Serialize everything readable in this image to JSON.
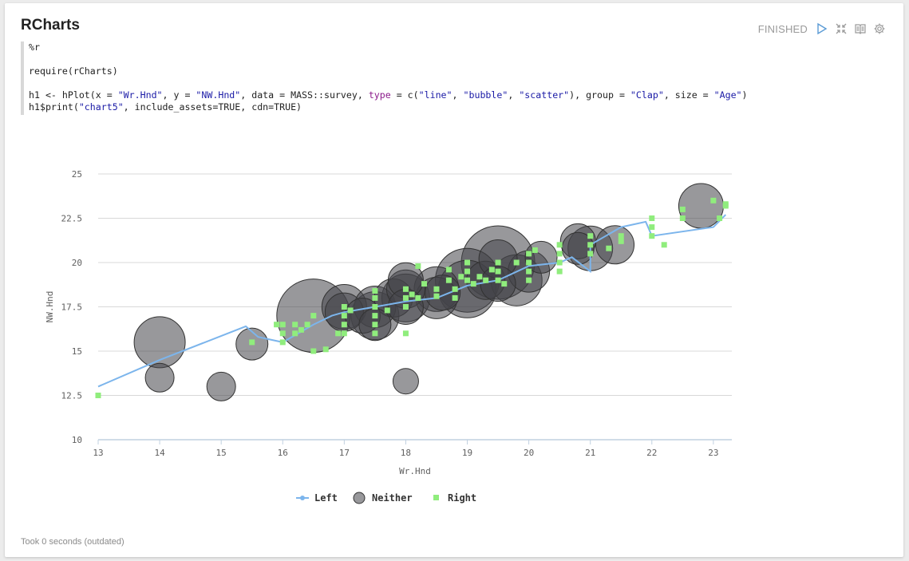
{
  "paragraph": {
    "title": "RCharts",
    "status": "FINISHED",
    "footer": "Took 0 seconds (outdated)"
  },
  "code": {
    "line1": "%r",
    "line2": "",
    "line3": "require(rCharts)",
    "line4": "",
    "line5_parts": [
      "h1 <- hPlot(x = ",
      "\"Wr.Hnd\"",
      ", y = ",
      "\"NW.Hnd\"",
      ", data = MASS::survey, ",
      "type",
      " = c(",
      "\"line\"",
      ", ",
      "\"bubble\"",
      ", ",
      "\"scatter\"",
      "), group = ",
      "\"Clap\"",
      ", size = ",
      "\"Age\"",
      ")"
    ],
    "line6_parts": [
      "h1$print(",
      "\"chart5\"",
      ", include_assets=TRUE, cdn=TRUE)"
    ]
  },
  "chart_data": {
    "type": "scatter",
    "xlabel": "Wr.Hnd",
    "ylabel": "NW.Hnd",
    "xlim": [
      13,
      23.3
    ],
    "ylim": [
      10,
      25
    ],
    "x_ticks": [
      "13",
      "14",
      "15",
      "16",
      "17",
      "18",
      "19",
      "20",
      "21",
      "22",
      "23"
    ],
    "y_ticks": [
      "10",
      "12.5",
      "15",
      "17.5",
      "20",
      "22.5",
      "25"
    ],
    "grid": true,
    "legend_position": "bottom",
    "colors": {
      "Left": "#7cb5ec",
      "Neither": "#434348",
      "Right": "#90ed7d",
      "grid": "#d8d8d8",
      "axis": "#c0d0e0"
    },
    "series": [
      {
        "name": "Left",
        "kind": "line",
        "points": [
          [
            13,
            13
          ],
          [
            14,
            14.5
          ],
          [
            15.4,
            16.4
          ],
          [
            15.6,
            15.8
          ],
          [
            16,
            15.5
          ],
          [
            16.5,
            16.5
          ],
          [
            16.8,
            17
          ],
          [
            17,
            17.2
          ],
          [
            17.5,
            17.5
          ],
          [
            18,
            17.8
          ],
          [
            18.5,
            18
          ],
          [
            19,
            18.7
          ],
          [
            19.5,
            19
          ],
          [
            20,
            19.8
          ],
          [
            20.5,
            20
          ],
          [
            20.7,
            20.3
          ],
          [
            21,
            19.5
          ],
          [
            21,
            21
          ],
          [
            21.5,
            22
          ],
          [
            21.9,
            22.3
          ],
          [
            22,
            21.5
          ],
          [
            23,
            22
          ],
          [
            23.2,
            22.7
          ]
        ]
      },
      {
        "name": "Neither",
        "kind": "bubble",
        "points": [
          [
            14,
            15.5,
            32
          ],
          [
            14,
            13.5,
            18
          ],
          [
            15,
            13,
            18
          ],
          [
            15.5,
            15.4,
            20
          ],
          [
            16.5,
            17,
            46
          ],
          [
            17,
            17.5,
            28
          ],
          [
            17,
            17.2,
            24
          ],
          [
            17.3,
            17,
            22
          ],
          [
            17.5,
            17.5,
            26
          ],
          [
            17.5,
            17,
            30
          ],
          [
            17.5,
            16.5,
            20
          ],
          [
            17.8,
            18,
            24
          ],
          [
            18,
            18,
            30
          ],
          [
            18,
            18.5,
            24
          ],
          [
            18,
            19,
            22
          ],
          [
            18,
            17.5,
            22
          ],
          [
            18,
            13.3,
            16
          ],
          [
            18.5,
            18.5,
            28
          ],
          [
            18.5,
            18,
            26
          ],
          [
            18.6,
            18.3,
            22
          ],
          [
            19,
            19,
            40
          ],
          [
            19,
            18.5,
            36
          ],
          [
            19.3,
            19,
            24
          ],
          [
            19.5,
            20,
            46
          ],
          [
            19.5,
            20.2,
            24
          ],
          [
            19.5,
            18.8,
            22
          ],
          [
            19.8,
            19,
            32
          ],
          [
            20,
            19.5,
            26
          ],
          [
            20.2,
            20.3,
            20
          ],
          [
            20.8,
            21.2,
            22
          ],
          [
            20.8,
            20.8,
            20
          ],
          [
            21,
            20.8,
            28
          ],
          [
            21.4,
            21,
            24
          ],
          [
            22.8,
            23.2,
            28
          ]
        ]
      },
      {
        "name": "Right",
        "kind": "scatter",
        "points": [
          [
            13,
            12.5
          ],
          [
            15.5,
            15.5
          ],
          [
            15.9,
            16.5
          ],
          [
            16,
            16.5
          ],
          [
            16,
            16
          ],
          [
            16,
            15.5
          ],
          [
            16.2,
            16.5
          ],
          [
            16.2,
            16
          ],
          [
            16.3,
            16.2
          ],
          [
            16.4,
            16.5
          ],
          [
            16.5,
            17
          ],
          [
            16.5,
            15
          ],
          [
            16.7,
            15.1
          ],
          [
            16.9,
            16
          ],
          [
            17,
            17.5
          ],
          [
            17,
            17
          ],
          [
            17,
            16.5
          ],
          [
            17,
            16
          ],
          [
            17.1,
            17.3
          ],
          [
            17.5,
            18.4
          ],
          [
            17.5,
            18
          ],
          [
            17.5,
            17.5
          ],
          [
            17.5,
            17
          ],
          [
            17.5,
            16.5
          ],
          [
            17.5,
            16
          ],
          [
            17.7,
            17.3
          ],
          [
            18,
            18.5
          ],
          [
            18,
            18
          ],
          [
            18,
            17.5
          ],
          [
            18,
            16
          ],
          [
            18.1,
            18.2
          ],
          [
            18.2,
            19.8
          ],
          [
            18.2,
            18
          ],
          [
            18.3,
            18.8
          ],
          [
            18.5,
            18.5
          ],
          [
            18.5,
            18.1
          ],
          [
            18.7,
            19.6
          ],
          [
            18.7,
            19
          ],
          [
            18.8,
            18.5
          ],
          [
            18.8,
            18
          ],
          [
            18.9,
            19.2
          ],
          [
            19,
            20
          ],
          [
            19,
            19.5
          ],
          [
            19,
            19
          ],
          [
            19.1,
            18.8
          ],
          [
            19.2,
            19.2
          ],
          [
            19.3,
            19
          ],
          [
            19.4,
            19.6
          ],
          [
            19.5,
            20
          ],
          [
            19.5,
            19.5
          ],
          [
            19.5,
            19
          ],
          [
            19.6,
            18.8
          ],
          [
            19.8,
            20
          ],
          [
            20,
            20.5
          ],
          [
            20,
            20
          ],
          [
            20,
            19.5
          ],
          [
            20,
            19
          ],
          [
            20.1,
            20.7
          ],
          [
            20.5,
            21
          ],
          [
            20.5,
            20.5
          ],
          [
            20.5,
            20
          ],
          [
            20.5,
            19.5
          ],
          [
            21,
            21.5
          ],
          [
            21,
            21
          ],
          [
            21,
            20.5
          ],
          [
            21.3,
            20.8
          ],
          [
            21.5,
            21.5
          ],
          [
            21.5,
            21.2
          ],
          [
            22,
            22.5
          ],
          [
            22,
            22
          ],
          [
            22,
            21.5
          ],
          [
            22.2,
            21
          ],
          [
            22.5,
            23
          ],
          [
            22.5,
            22.5
          ],
          [
            23,
            23.5
          ],
          [
            23.1,
            22.5
          ],
          [
            23.2,
            23.3
          ],
          [
            23.2,
            23.2
          ]
        ]
      }
    ]
  }
}
